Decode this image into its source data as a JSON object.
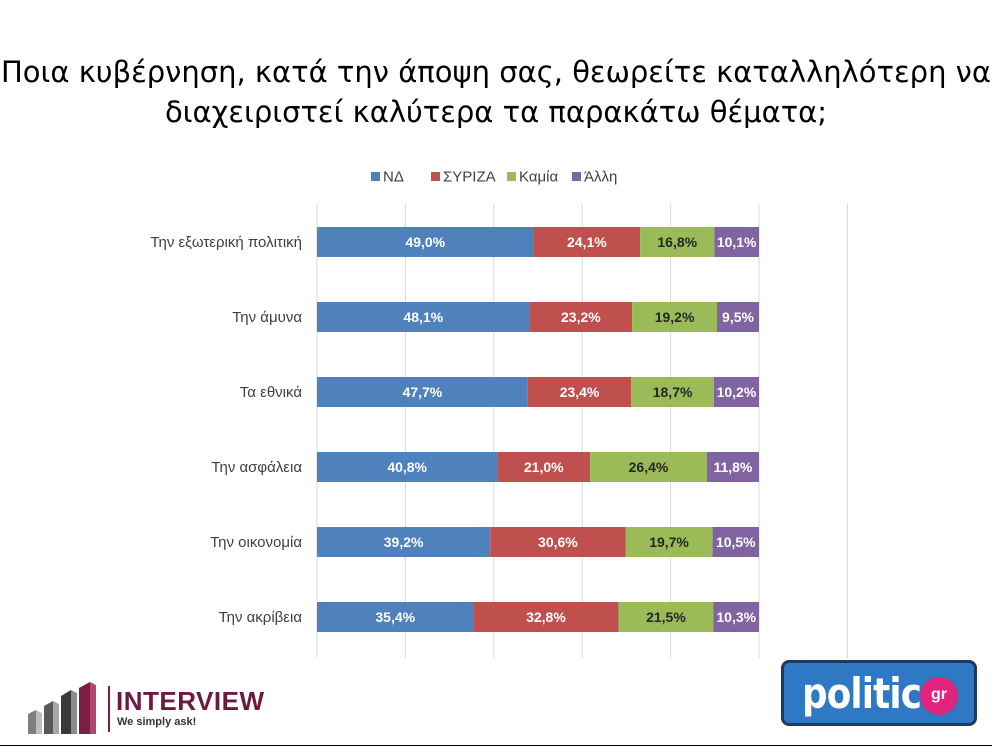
{
  "title_lines": [
    "Ποια κυβέρνηση, κατά την άποψη σας, θεωρείτε καταλληλότερη να",
    "διαχειριστεί καλύτερα τα παρακάτω θέματα;"
  ],
  "chart_data": {
    "type": "bar",
    "orientation": "horizontal",
    "stacked": true,
    "title": "Ποια κυβέρνηση, κατά την άποψη σας, θεωρείτε καταλληλότερη να διαχειριστεί καλύτερα τα παρακάτω θέματα;",
    "categories": [
      "Την εξωτερική πολιτική",
      "Την άμυνα",
      "Τα εθνικά",
      "Την ασφάλεια",
      "Την οικονομία",
      "Την ακρίβεια"
    ],
    "series": [
      {
        "name": "ΝΔ",
        "color": "#4f81bd",
        "label_color": "#ffffff",
        "values": [
          49.0,
          48.1,
          47.7,
          40.8,
          39.2,
          35.4
        ],
        "labels": [
          "49,0%",
          "48,1%",
          "47,7%",
          "40,8%",
          "39,2%",
          "35,4%"
        ]
      },
      {
        "name": "ΣΥΡΙΖΑ",
        "color": "#c0504d",
        "label_color": "#ffffff",
        "values": [
          24.1,
          23.2,
          23.4,
          21.0,
          30.6,
          32.8
        ],
        "labels": [
          "24,1%",
          "23,2%",
          "23,4%",
          "21,0%",
          "30,6%",
          "32,8%"
        ]
      },
      {
        "name": "Καμία",
        "color": "#9bbb59",
        "label_color": "#262626",
        "values": [
          16.8,
          19.2,
          18.7,
          26.4,
          19.7,
          21.5
        ],
        "labels": [
          "16,8%",
          "19,2%",
          "18,7%",
          "26,4%",
          "19,7%",
          "21,5%"
        ]
      },
      {
        "name": "Άλλη",
        "color": "#8064a2",
        "label_color": "#ffffff",
        "values": [
          10.1,
          9.5,
          10.2,
          11.8,
          10.5,
          10.3
        ],
        "labels": [
          "10,1%",
          "9,5%",
          "10,2%",
          "11,8%",
          "10,5%",
          "10,3%"
        ]
      }
    ],
    "xlim": [
      0,
      120
    ],
    "grid": true,
    "legend": "top-center"
  },
  "logos": {
    "interview_name": "INTERVIEW",
    "interview_tagline": "We simply ask!",
    "politic_word": "politic",
    "politic_badge": "gr"
  }
}
